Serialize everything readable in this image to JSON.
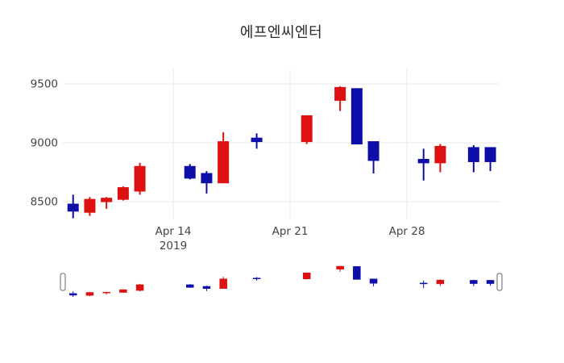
{
  "chart_data": {
    "type": "candlestick",
    "title": "에프엔씨엔터",
    "x": [
      "2019-04-08",
      "2019-04-09",
      "2019-04-10",
      "2019-04-11",
      "2019-04-12",
      "2019-04-15",
      "2019-04-16",
      "2019-04-17",
      "2019-04-19",
      "2019-04-22",
      "2019-04-24",
      "2019-04-25",
      "2019-04-26",
      "2019-04-29",
      "2019-04-30",
      "2019-05-02",
      "2019-05-03"
    ],
    "series": {
      "open": [
        8480,
        8410,
        8500,
        8520,
        8590,
        8800,
        8740,
        8660,
        9040,
        9010,
        9360,
        9460,
        9010,
        8860,
        8830,
        8960,
        8960
      ],
      "high": [
        8560,
        8540,
        8540,
        8630,
        8830,
        8820,
        8760,
        9090,
        9080,
        9230,
        9480,
        9460,
        9010,
        8950,
        8990,
        8980,
        8960
      ],
      "low": [
        8360,
        8380,
        8440,
        8510,
        8560,
        8690,
        8570,
        8660,
        8950,
        8990,
        9270,
        8990,
        8740,
        8680,
        8750,
        8750,
        8760
      ],
      "close": [
        8420,
        8520,
        8530,
        8620,
        8800,
        8700,
        8660,
        9010,
        9010,
        9230,
        9470,
        8990,
        8850,
        8830,
        8970,
        8840,
        8840
      ]
    },
    "increasing_color": "#dd1111",
    "decreasing_color": "#0d0da8",
    "xlim": [
      "2019-04-07T09:15Z",
      "2019-05-03T13:15Z"
    ],
    "ylim": [
      8350,
      9630
    ],
    "yticks": [
      {
        "value": 9500,
        "label": "9500"
      },
      {
        "value": 9000,
        "label": "9000"
      },
      {
        "value": 8500,
        "label": "8500"
      }
    ],
    "xticks": [
      {
        "date": "2019-04-14",
        "label": "Apr 14",
        "sublabel": "2019"
      },
      {
        "date": "2019-04-21",
        "label": "Apr 21",
        "sublabel": ""
      },
      {
        "date": "2019-04-28",
        "label": "Apr 28",
        "sublabel": ""
      }
    ],
    "grid": true,
    "legend": "none",
    "rangeslider": {
      "visible": true,
      "ylim": [
        8330,
        9500
      ]
    }
  },
  "colors": {
    "background": "#ffffff",
    "grid": "#e8e8e8",
    "tick_text": "#444444",
    "title_text": "#2a2a2a",
    "handle_fill": "#ffffff",
    "handle_border": "#666666"
  }
}
